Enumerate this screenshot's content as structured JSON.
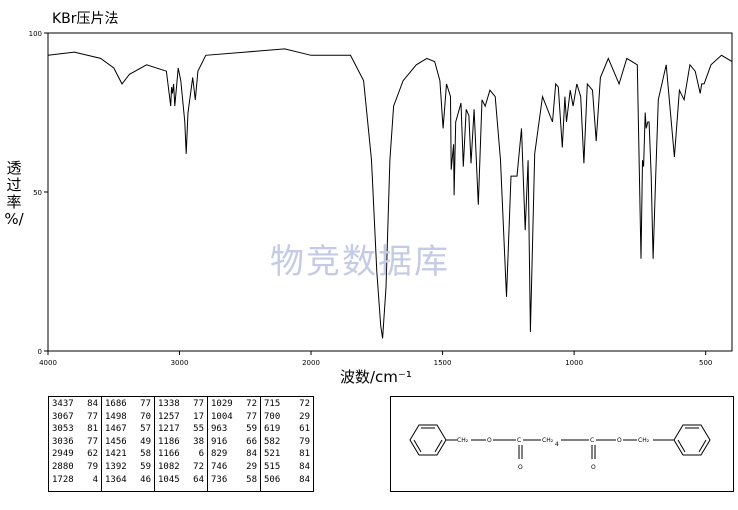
{
  "header": {
    "title": "KBr压片法"
  },
  "watermark": "物竞数据库",
  "chart_data": {
    "type": "line",
    "title": "KBr压片法",
    "xlabel": "波数/cm⁻¹",
    "ylabel_chars": [
      "透",
      "过",
      "率",
      "%/"
    ],
    "xlim": [
      4000,
      400
    ],
    "ylim": [
      0,
      100
    ],
    "x_ticks": [
      4000,
      3000,
      2000,
      1500,
      1000,
      500
    ],
    "x_tick_labels": [
      "4000",
      "3000",
      "2000",
      "1500",
      "1000",
      "500"
    ],
    "y_ticks": [
      0,
      50,
      100
    ],
    "y_tick_labels": [
      "0",
      "50",
      "100"
    ],
    "grid": false,
    "series": [
      {
        "x": [
          4000,
          3800,
          3600,
          3500,
          3437,
          3380,
          3250,
          3100,
          3067,
          3060,
          3053,
          3045,
          3036,
          3010,
          2990,
          2960,
          2949,
          2935,
          2900,
          2880,
          2860,
          2800,
          2500,
          2200,
          2000,
          1900,
          1850,
          1800,
          1770,
          1750,
          1735,
          1728,
          1715,
          1700,
          1686,
          1650,
          1600,
          1560,
          1530,
          1510,
          1498,
          1485,
          1470,
          1467,
          1458,
          1456,
          1450,
          1430,
          1421,
          1410,
          1400,
          1392,
          1380,
          1364,
          1350,
          1338,
          1320,
          1300,
          1280,
          1257,
          1240,
          1217,
          1200,
          1186,
          1175,
          1166,
          1150,
          1120,
          1082,
          1070,
          1060,
          1045,
          1035,
          1029,
          1015,
          1004,
          990,
          975,
          963,
          950,
          930,
          916,
          900,
          870,
          829,
          800,
          760,
          746,
          740,
          736,
          730,
          726,
          720,
          715,
          707,
          700,
          690,
          680,
          650,
          619,
          600,
          582,
          560,
          540,
          521,
          515,
          506,
          480,
          440,
          400
        ],
        "y": [
          93,
          94,
          92,
          89,
          84,
          87,
          90,
          88,
          77,
          83,
          81,
          84,
          77,
          89,
          85,
          72,
          62,
          75,
          86,
          79,
          88,
          93,
          94,
          95,
          93,
          93,
          93,
          85,
          60,
          25,
          8,
          4,
          20,
          60,
          77,
          85,
          90,
          92,
          91,
          85,
          70,
          84,
          80,
          57,
          65,
          49,
          72,
          78,
          58,
          76,
          74,
          59,
          76,
          46,
          79,
          77,
          82,
          80,
          60,
          17,
          55,
          55,
          70,
          38,
          60,
          6,
          62,
          80,
          72,
          84,
          83,
          64,
          80,
          72,
          82,
          77,
          84,
          80,
          59,
          84,
          82,
          66,
          86,
          92,
          84,
          92,
          90,
          29,
          60,
          58,
          75,
          70,
          72,
          72,
          55,
          29,
          55,
          79,
          90,
          61,
          82,
          79,
          90,
          88,
          81,
          84,
          84,
          90,
          93,
          91
        ]
      }
    ]
  },
  "peak_table": {
    "columns": [
      [
        [
          "3437",
          "84"
        ],
        [
          "3067",
          "77"
        ],
        [
          "3053",
          "81"
        ],
        [
          "3036",
          "77"
        ],
        [
          "2949",
          "62"
        ],
        [
          "2880",
          "79"
        ],
        [
          "1728",
          "4"
        ]
      ],
      [
        [
          "1686",
          "77"
        ],
        [
          "1498",
          "70"
        ],
        [
          "1467",
          "57"
        ],
        [
          "1456",
          "49"
        ],
        [
          "1421",
          "58"
        ],
        [
          "1392",
          "59"
        ],
        [
          "1364",
          "46"
        ]
      ],
      [
        [
          "1338",
          "77"
        ],
        [
          "1257",
          "17"
        ],
        [
          "1217",
          "55"
        ],
        [
          "1186",
          "38"
        ],
        [
          "1166",
          "6"
        ],
        [
          "1082",
          "72"
        ],
        [
          "1045",
          "64"
        ]
      ],
      [
        [
          "1029",
          "72"
        ],
        [
          "1004",
          "77"
        ],
        [
          "963",
          "59"
        ],
        [
          "916",
          "66"
        ],
        [
          "829",
          "84"
        ],
        [
          "746",
          "29"
        ],
        [
          "736",
          "58"
        ]
      ],
      [
        [
          "715",
          "72"
        ],
        [
          "700",
          "29"
        ],
        [
          "619",
          "61"
        ],
        [
          "582",
          "79"
        ],
        [
          "521",
          "81"
        ],
        [
          "515",
          "84"
        ],
        [
          "506",
          "84"
        ]
      ]
    ]
  },
  "structure": {
    "labels": {
      "ch2_left": "CH₂",
      "o_left": "O",
      "c_left": "C",
      "ch2_chain": "CH₂",
      "subscript": "4",
      "c_right": "C",
      "o_right": "O",
      "ch2_right": "CH₂",
      "carbonyl_o_left": "O",
      "carbonyl_o_right": "O"
    }
  }
}
